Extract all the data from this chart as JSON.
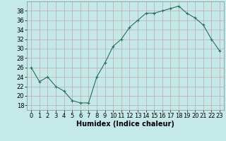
{
  "x": [
    0,
    1,
    2,
    3,
    4,
    5,
    6,
    7,
    8,
    9,
    10,
    11,
    12,
    13,
    14,
    15,
    16,
    17,
    18,
    19,
    20,
    21,
    22,
    23
  ],
  "y": [
    26,
    23,
    24,
    22,
    21,
    19,
    18.5,
    18.5,
    24,
    27,
    30.5,
    32,
    34.5,
    36,
    37.5,
    37.5,
    38,
    38.5,
    39,
    37.5,
    36.5,
    35,
    32,
    29.5
  ],
  "line_color": "#2a6e5e",
  "marker": "+",
  "bg_color": "#c5e8e8",
  "grid_color": "#c0a8a8",
  "xlabel": "Humidex (Indice chaleur)",
  "xlim": [
    -0.5,
    23.5
  ],
  "ylim": [
    17,
    40
  ],
  "yticks": [
    18,
    20,
    22,
    24,
    26,
    28,
    30,
    32,
    34,
    36,
    38
  ],
  "xticks": [
    0,
    1,
    2,
    3,
    4,
    5,
    6,
    7,
    8,
    9,
    10,
    11,
    12,
    13,
    14,
    15,
    16,
    17,
    18,
    19,
    20,
    21,
    22,
    23
  ],
  "label_fontsize": 7,
  "tick_fontsize": 6
}
